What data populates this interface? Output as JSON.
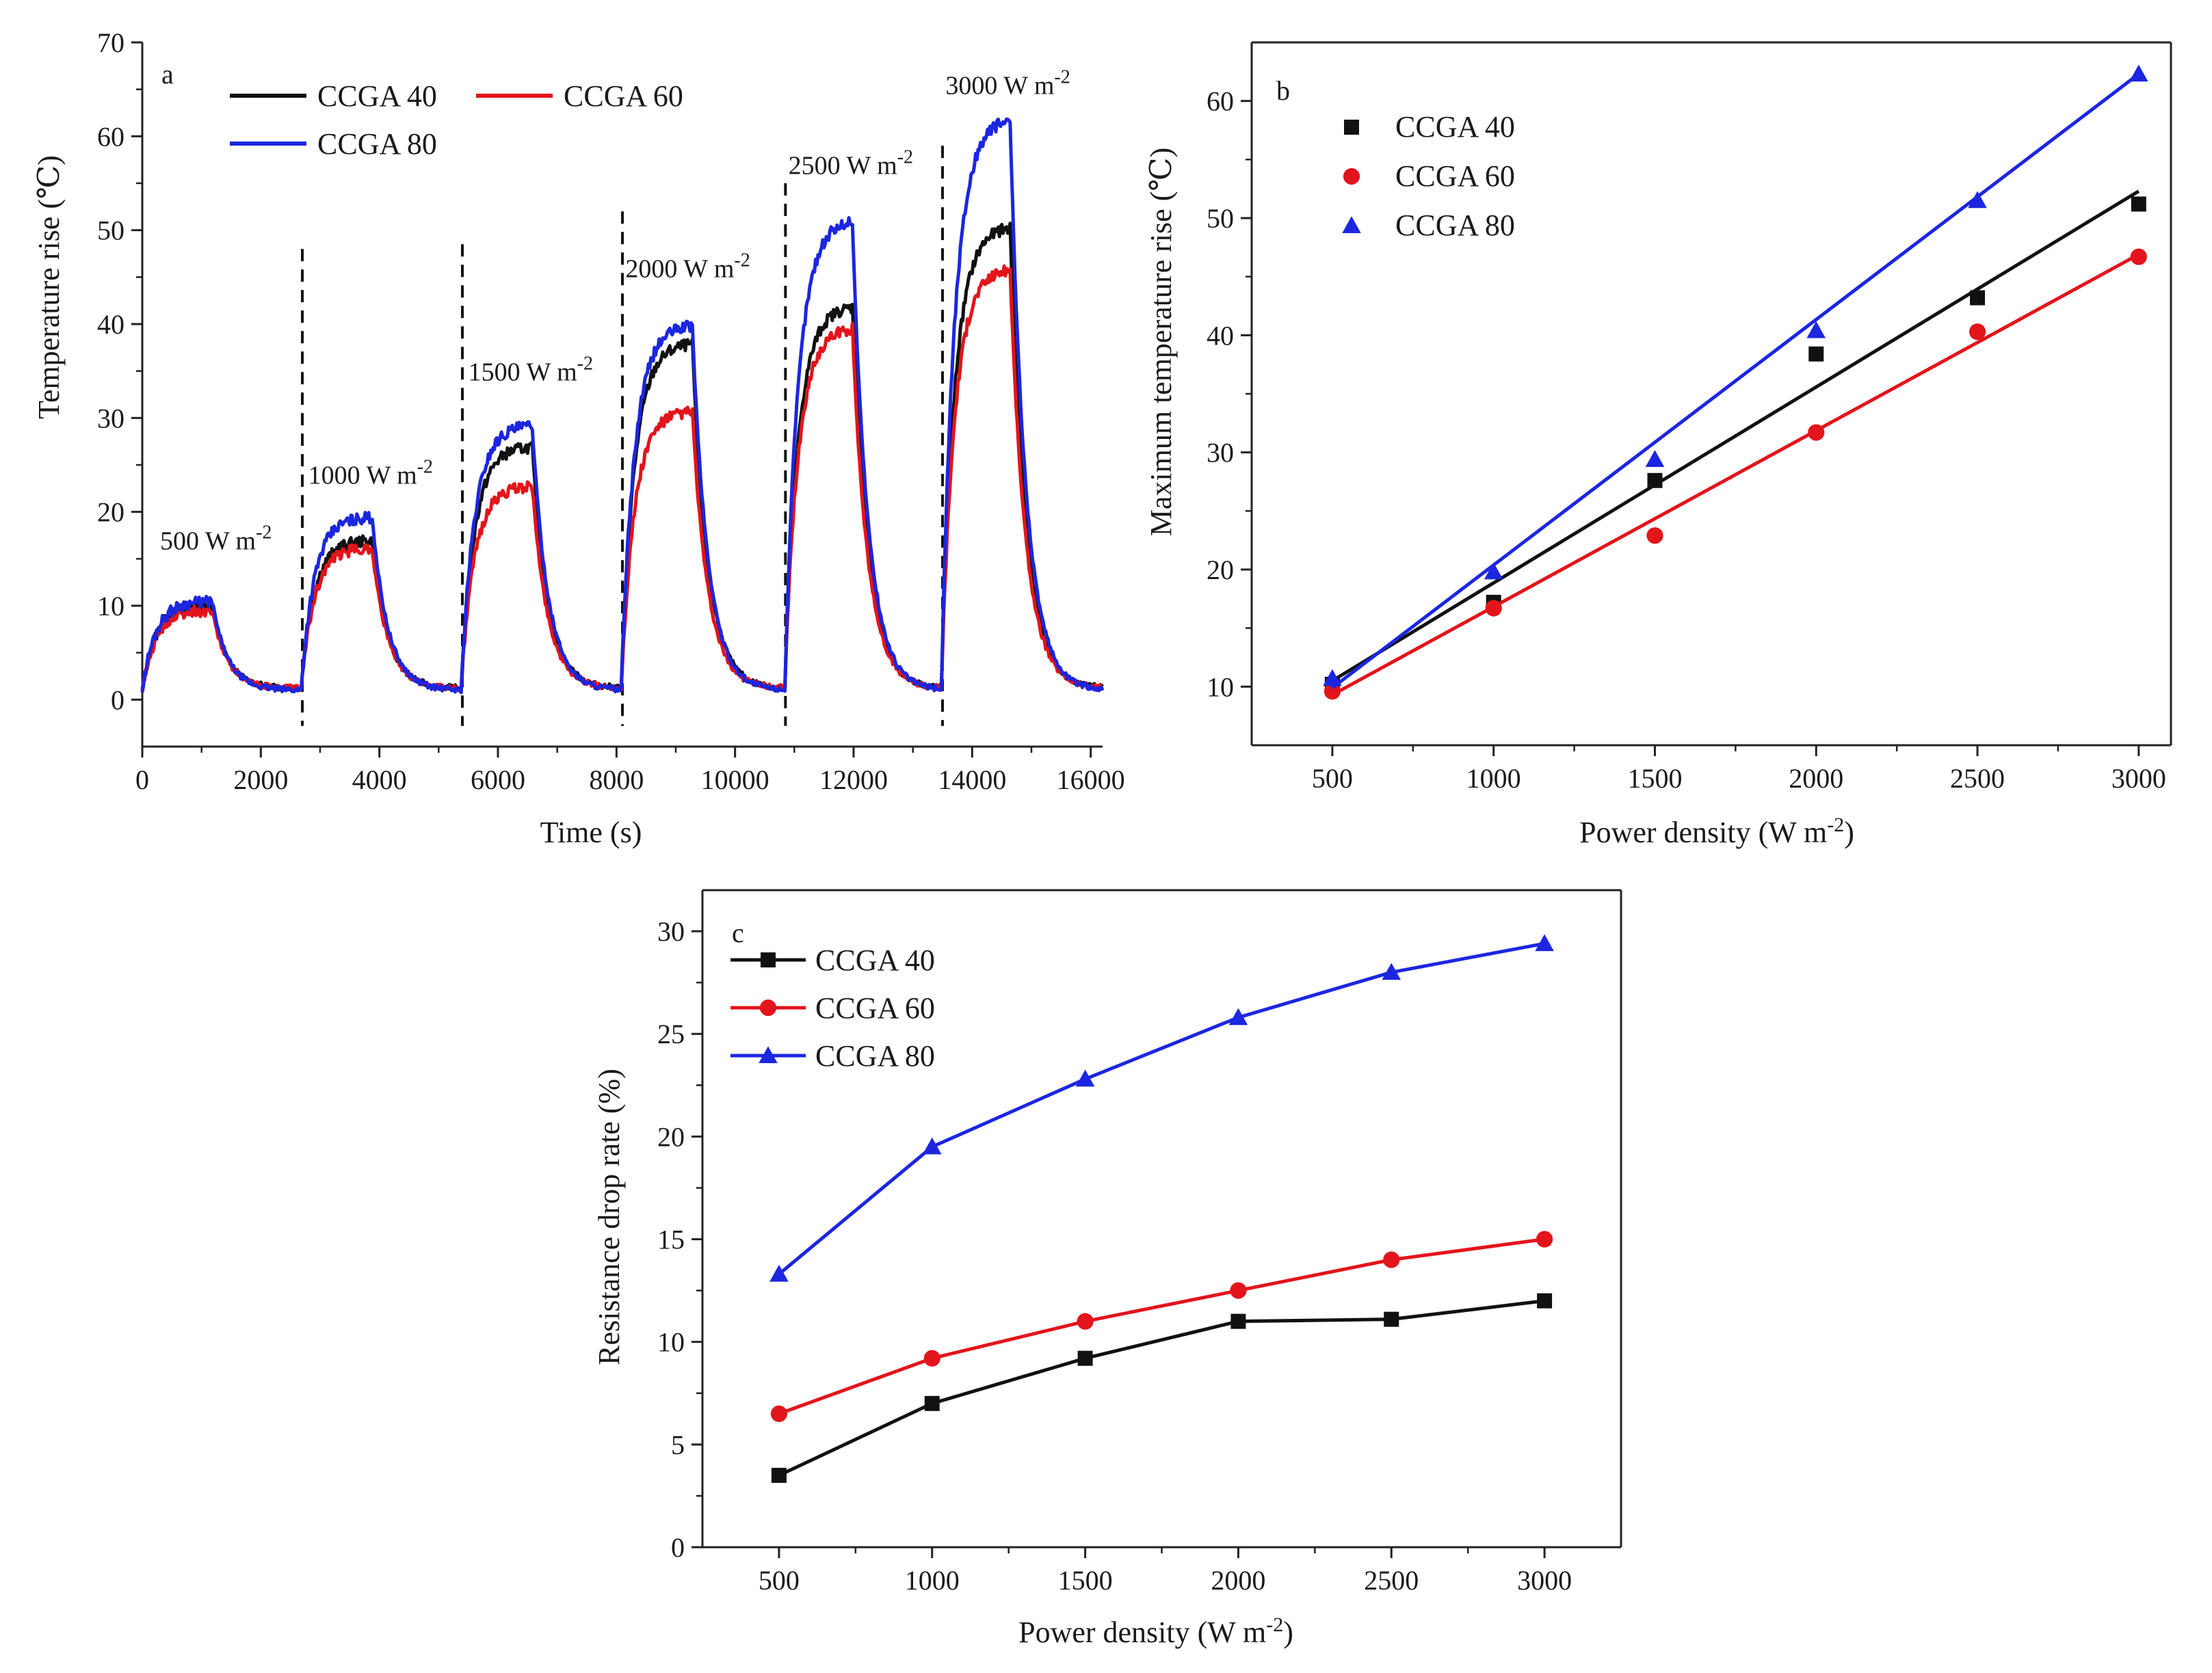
{
  "figure": {
    "power_densities": [
      500,
      1000,
      1500,
      2000,
      2500,
      3000
    ],
    "series_colors": {
      "CCGA 40": "#111111",
      "CCGA 60": "#e3141b",
      "CCGA 80": "#1c26e0"
    }
  },
  "chart_data": [
    {
      "id": "a",
      "type": "line",
      "panel_label": "a",
      "xlabel": "Time (s)",
      "ylabel": "Temperature rise (℃)",
      "xlim": [
        0,
        16200
      ],
      "ylim": [
        -5,
        70
      ],
      "xticks": [
        0,
        2000,
        4000,
        6000,
        8000,
        10000,
        12000,
        14000,
        16000
      ],
      "yticks": [
        0,
        10,
        20,
        30,
        40,
        50,
        60,
        70
      ],
      "dashed_lines_x": [
        2700,
        5400,
        8100,
        10850,
        13500
      ],
      "stages": [
        {
          "on": 0,
          "off": 1200
        },
        {
          "on": 2700,
          "off": 3900
        },
        {
          "on": 5400,
          "off": 6600
        },
        {
          "on": 8100,
          "off": 9300
        },
        {
          "on": 10850,
          "off": 12000
        },
        {
          "on": 13500,
          "off": 14650
        }
      ],
      "annotations": [
        {
          "text": "500 W m",
          "sup": "-2",
          "x": 300,
          "y": 16
        },
        {
          "text": "1000 W m",
          "sup": "-2",
          "x": 2800,
          "y": 23
        },
        {
          "text": "1500 W m",
          "sup": "-2",
          "x": 5500,
          "y": 34
        },
        {
          "text": "2000 W m",
          "sup": "-2",
          "x": 8150,
          "y": 45
        },
        {
          "text": "2500 W m",
          "sup": "-2",
          "x": 10900,
          "y": 56
        },
        {
          "text": "3000 W m",
          "sup": "-2",
          "x": 13550,
          "y": 64.5
        }
      ],
      "series": [
        {
          "name": "CCGA 40",
          "color": "#111111",
          "plateaus": [
            10,
            17,
            27,
            38,
            42,
            50.5
          ],
          "baseline": 1.2
        },
        {
          "name": "CCGA 60",
          "color": "#e3141b",
          "plateaus": [
            9.5,
            16.2,
            22.8,
            30.8,
            39.7,
            46
          ],
          "baseline": 1.2
        },
        {
          "name": "CCGA 80",
          "color": "#1c26e0",
          "plateaus": [
            10.5,
            19.5,
            29.3,
            40,
            51.2,
            62
          ],
          "baseline": 1.0
        }
      ],
      "legend": [
        "CCGA 40",
        "CCGA 60",
        "CCGA 80"
      ]
    },
    {
      "id": "b",
      "type": "scatter",
      "panel_label": "b",
      "xlabel": "Power density (W m",
      "xlabel_sup": "-2",
      "xlabel_end": ")",
      "ylabel": "Maximum temperature rise (℃)",
      "xlim": [
        250,
        3100
      ],
      "ylim": [
        5,
        65
      ],
      "xticks": [
        500,
        1000,
        1500,
        2000,
        2500,
        3000
      ],
      "yticks": [
        10,
        20,
        30,
        40,
        50,
        60
      ],
      "series": [
        {
          "name": "CCGA 40",
          "color": "#111111",
          "marker": "square",
          "x": [
            500,
            1000,
            1500,
            2000,
            2500,
            3000
          ],
          "y": [
            10.2,
            17.2,
            27.6,
            38.4,
            43.2,
            51.2
          ],
          "fit": [
            [
              500,
              10.5
            ],
            [
              3000,
              52.3
            ]
          ]
        },
        {
          "name": "CCGA 60",
          "color": "#e3141b",
          "marker": "circle",
          "x": [
            500,
            1000,
            1500,
            2000,
            2500,
            3000
          ],
          "y": [
            9.6,
            16.7,
            22.9,
            31.7,
            40.3,
            46.7
          ],
          "fit": [
            [
              500,
              9.3
            ],
            [
              3000,
              46.9
            ]
          ]
        },
        {
          "name": "CCGA 80",
          "color": "#1c26e0",
          "marker": "triangle",
          "x": [
            500,
            1000,
            1500,
            2000,
            2500,
            3000
          ],
          "y": [
            10.7,
            19.8,
            29.4,
            40.4,
            51.5,
            62.3
          ],
          "fit": [
            [
              500,
              9.9
            ],
            [
              3000,
              62.3
            ]
          ]
        }
      ],
      "legend": [
        "CCGA 40",
        "CCGA 60",
        "CCGA 80"
      ]
    },
    {
      "id": "c",
      "type": "line",
      "panel_label": "c",
      "xlabel": "Power density (W m",
      "xlabel_sup": "-2",
      "xlabel_end": ")",
      "ylabel": "Resistance drop rate (%)",
      "xlim": [
        250,
        3250
      ],
      "ylim": [
        0,
        32
      ],
      "xticks": [
        500,
        1000,
        1500,
        2000,
        2500,
        3000
      ],
      "yticks": [
        0,
        5,
        10,
        15,
        20,
        25,
        30
      ],
      "series": [
        {
          "name": "CCGA 40",
          "color": "#111111",
          "marker": "square",
          "x": [
            500,
            1000,
            1500,
            2000,
            2500,
            3000
          ],
          "y": [
            3.5,
            7.0,
            9.2,
            11.0,
            11.1,
            12.0
          ]
        },
        {
          "name": "CCGA 60",
          "color": "#e3141b",
          "marker": "circle",
          "x": [
            500,
            1000,
            1500,
            2000,
            2500,
            3000
          ],
          "y": [
            6.5,
            9.2,
            11.0,
            12.5,
            14.0,
            15.0
          ]
        },
        {
          "name": "CCGA 80",
          "color": "#1c26e0",
          "marker": "triangle",
          "x": [
            500,
            1000,
            1500,
            2000,
            2500,
            3000
          ],
          "y": [
            13.3,
            19.5,
            22.8,
            25.8,
            28.0,
            29.4
          ]
        }
      ],
      "legend": [
        "CCGA 40",
        "CCGA 60",
        "CCGA 80"
      ]
    }
  ]
}
